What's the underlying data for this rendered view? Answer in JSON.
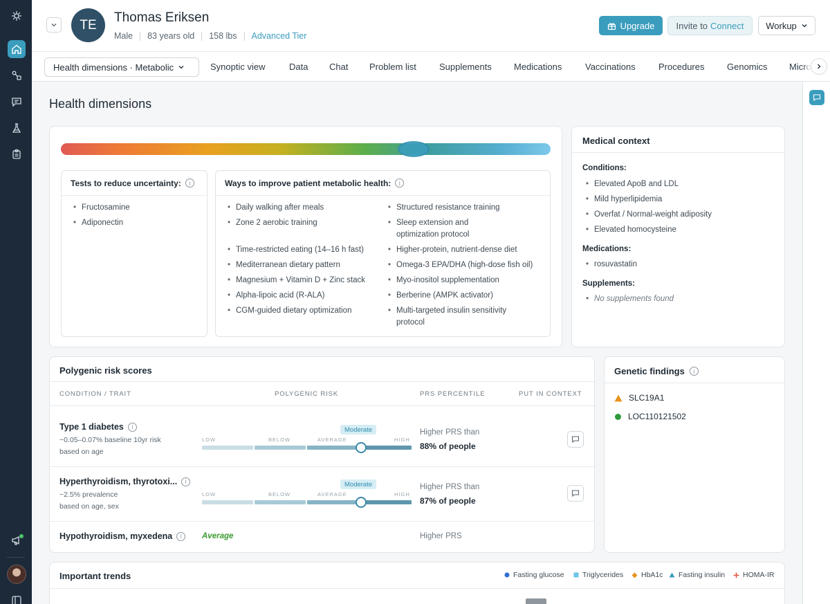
{
  "patient": {
    "initials": "TE",
    "name": "Thomas Eriksen",
    "sex": "Male",
    "age": "83 years old",
    "weight": "158 lbs",
    "tier": "Advanced Tier"
  },
  "header_buttons": {
    "upgrade": "Upgrade",
    "invite_prefix": "Invite to",
    "invite_link": "Connect",
    "workup": "Workup"
  },
  "tabs": {
    "selector": "Health dimensions · Metabolic",
    "items": [
      "Synoptic view",
      "Data",
      "Chat",
      "Problem list",
      "Supplements",
      "Medications",
      "Vaccinations",
      "Procedures",
      "Genomics",
      "Micro"
    ]
  },
  "page_title": "Health dimensions",
  "metabolic_score_fraction": 0.72,
  "tests": {
    "title": "Tests to reduce uncertainty:",
    "items": [
      "Fructosamine",
      "Adiponectin"
    ]
  },
  "improve": {
    "title": "Ways to improve patient metabolic health:",
    "left": [
      "Daily walking after meals",
      "Zone 2 aerobic training",
      "Time-restricted eating (14–16 h fast)",
      "Mediterranean dietary pattern",
      "Magnesium + Vitamin D + Zinc stack",
      "Alpha-lipoic acid (R-ALA)",
      "CGM-guided dietary optimization"
    ],
    "right": [
      "Structured resistance training",
      "Sleep extension and optimization protocol",
      "Higher-protein, nutrient-dense diet",
      "Omega-3 EPA/DHA (high-dose fish oil)",
      "Myo-inositol supplementation",
      "Berberine (AMPK activator)",
      "Multi-targeted insulin sensitivity protocol"
    ]
  },
  "medical_context": {
    "title": "Medical context",
    "conditions_label": "Conditions:",
    "conditions": [
      "Elevated ApoB and LDL",
      "Mild hyperlipidemia",
      "Overfat / Normal-weight adiposity",
      "Elevated homocysteine"
    ],
    "medications_label": "Medications:",
    "medications": [
      "rosuvastatin"
    ],
    "supplements_label": "Supplements:",
    "supplements_empty": "No supplements found"
  },
  "prs": {
    "title": "Polygenic risk scores",
    "columns": [
      "CONDITION / TRAIT",
      "POLYGENIC RISK",
      "PRS PERCENTILE",
      "PUT IN CONTEXT"
    ],
    "scale_labels": [
      "LOW",
      "BELOW",
      "AVERAGE",
      "HIGH"
    ],
    "rows": [
      {
        "name": "Type 1 diabetes",
        "sub1": "~0.05–0.07% baseline 10yr risk",
        "sub2": "based on age",
        "badge": "Moderate",
        "risk_fraction": 0.76,
        "pct_prefix": "Higher PRS than",
        "pct_value": "88% of people"
      },
      {
        "name": "Hyperthyroidism, thyrotoxi...",
        "sub1": "~2.5% prevalence",
        "sub2": "based on age, sex",
        "badge": "Moderate",
        "risk_fraction": 0.76,
        "pct_prefix": "Higher PRS than",
        "pct_value": "87% of people"
      },
      {
        "name": "Hypothyroidism, myxedena",
        "status": "Average",
        "pct_prefix": "Higher PRS"
      }
    ]
  },
  "genetic_findings": {
    "title": "Genetic findings",
    "items": [
      {
        "name": "SLC19A1",
        "icon": "warning-triangle-icon",
        "color": "#e8941f"
      },
      {
        "name": "LOC110121502",
        "icon": "green-dot-icon",
        "color": "#2e9a3c"
      }
    ]
  },
  "trends": {
    "title": "Important trends",
    "legend": [
      {
        "label": "Fasting glucose",
        "marker": "circle",
        "color": "#2f6fd6"
      },
      {
        "label": "Triglycerides",
        "marker": "square",
        "color": "#6cc4e6"
      },
      {
        "label": "HbA1c",
        "marker": "diamond",
        "color": "#e8941f"
      },
      {
        "label": "Fasting insulin",
        "marker": "triangle",
        "color": "#3b9dbd"
      },
      {
        "label": "HOMA-IR",
        "marker": "plus",
        "color": "#e0563f"
      }
    ]
  },
  "colors": {
    "accent": "#3b9dbd",
    "rail": "#1d2a3a",
    "average_green": "#3a9a2f"
  }
}
